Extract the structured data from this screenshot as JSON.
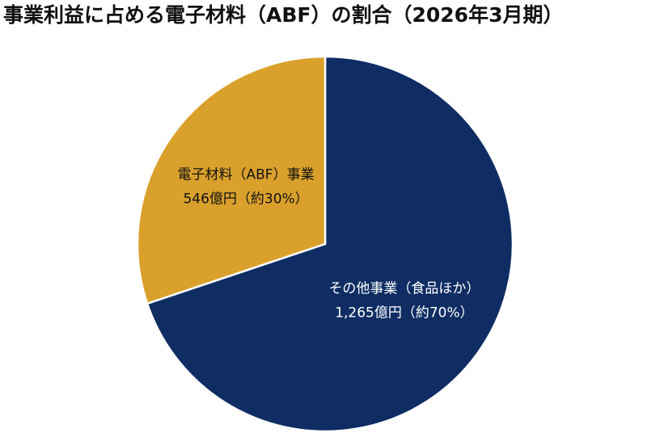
{
  "chart_data": {
    "type": "pie",
    "title": "事業利益に占める電子材料（ABF）の割合（2026年3月期）",
    "categories": [
      "その他事業（食品ほか）",
      "電子材料（ABF）事業"
    ],
    "values": [
      1265,
      546
    ],
    "value_labels": [
      "1,265億円（約70%）",
      "546億円（約30%）"
    ],
    "colors": [
      "#0f2d63",
      "#d9a02c"
    ],
    "label_colors": [
      "#ffffff",
      "#111111"
    ]
  }
}
